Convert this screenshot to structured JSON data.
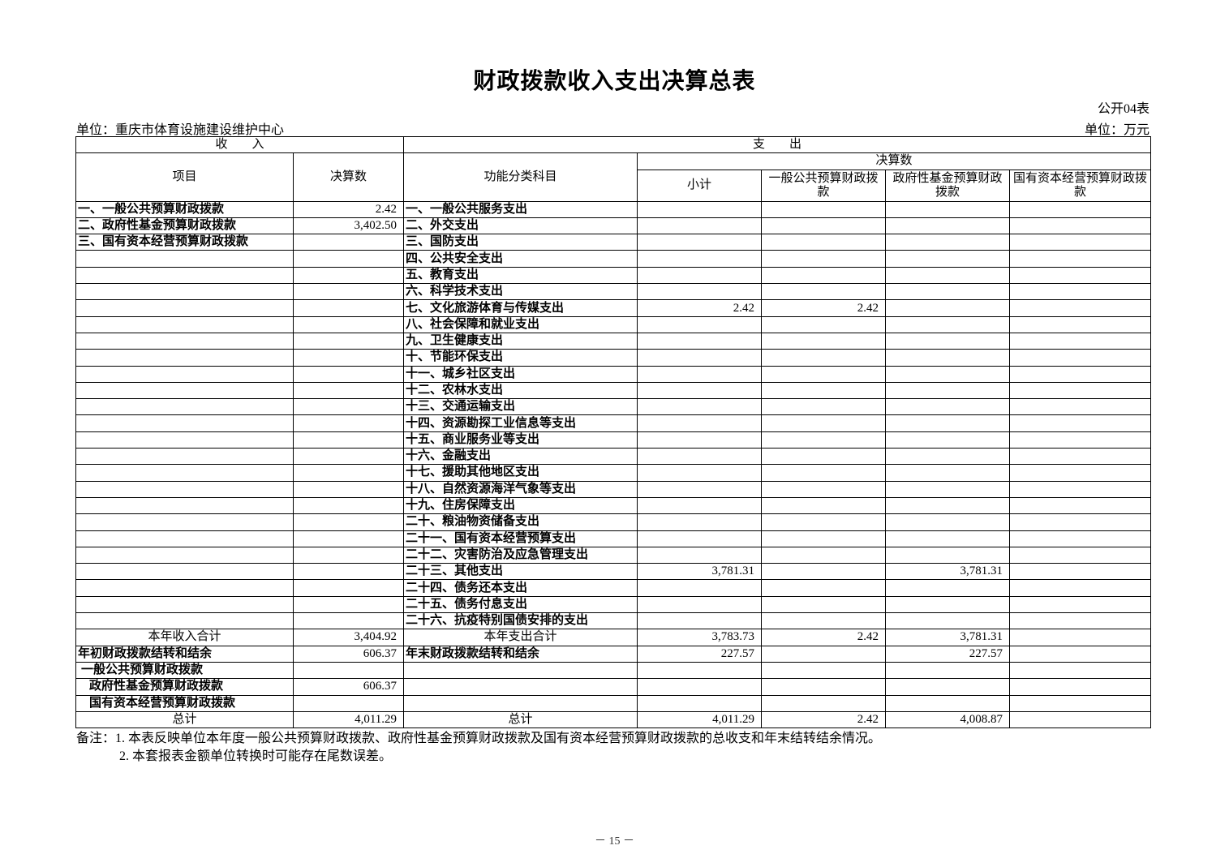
{
  "title": "财政拨款收入支出决算总表",
  "table_code": "公开04表",
  "unit_left": "单位：重庆市体育设施建设维护中心",
  "unit_right": "单位：万元",
  "header": {
    "income": "收　　入",
    "expense": "支　　出",
    "item": "项目",
    "amount": "决算数",
    "function_category": "功能分类科目",
    "final_amount": "决算数",
    "subtotal": "小计",
    "general_budget": "一般公共预算财政拨款",
    "gov_fund": "政府性基金预算财政拨款",
    "state_capital": "国有资本经营预算财政拨款"
  },
  "rows": [
    {
      "in_item": "一、一般公共预算财政拨款",
      "in_value": "2.42",
      "out_item": "一、一般公共服务支出",
      "subtotal": "",
      "general": "",
      "fund": "",
      "state": ""
    },
    {
      "in_item": "二、政府性基金预算财政拨款",
      "in_value": "3,402.50",
      "out_item": "二、外交支出",
      "subtotal": "",
      "general": "",
      "fund": "",
      "state": ""
    },
    {
      "in_item": "三、国有资本经营预算财政拨款",
      "in_value": "",
      "out_item": "三、国防支出",
      "subtotal": "",
      "general": "",
      "fund": "",
      "state": ""
    },
    {
      "in_item": "",
      "in_value": "",
      "out_item": "四、公共安全支出",
      "subtotal": "",
      "general": "",
      "fund": "",
      "state": ""
    },
    {
      "in_item": "",
      "in_value": "",
      "out_item": "五、教育支出",
      "subtotal": "",
      "general": "",
      "fund": "",
      "state": ""
    },
    {
      "in_item": "",
      "in_value": "",
      "out_item": "六、科学技术支出",
      "subtotal": "",
      "general": "",
      "fund": "",
      "state": ""
    },
    {
      "in_item": "",
      "in_value": "",
      "out_item": "七、文化旅游体育与传媒支出",
      "subtotal": "2.42",
      "general": "2.42",
      "fund": "",
      "state": ""
    },
    {
      "in_item": "",
      "in_value": "",
      "out_item": "八、社会保障和就业支出",
      "subtotal": "",
      "general": "",
      "fund": "",
      "state": ""
    },
    {
      "in_item": "",
      "in_value": "",
      "out_item": "九、卫生健康支出",
      "subtotal": "",
      "general": "",
      "fund": "",
      "state": ""
    },
    {
      "in_item": "",
      "in_value": "",
      "out_item": "十、节能环保支出",
      "subtotal": "",
      "general": "",
      "fund": "",
      "state": ""
    },
    {
      "in_item": "",
      "in_value": "",
      "out_item": "十一、城乡社区支出",
      "subtotal": "",
      "general": "",
      "fund": "",
      "state": ""
    },
    {
      "in_item": "",
      "in_value": "",
      "out_item": "十二、农林水支出",
      "subtotal": "",
      "general": "",
      "fund": "",
      "state": ""
    },
    {
      "in_item": "",
      "in_value": "",
      "out_item": "十三、交通运输支出",
      "subtotal": "",
      "general": "",
      "fund": "",
      "state": ""
    },
    {
      "in_item": "",
      "in_value": "",
      "out_item": "十四、资源勘探工业信息等支出",
      "subtotal": "",
      "general": "",
      "fund": "",
      "state": ""
    },
    {
      "in_item": "",
      "in_value": "",
      "out_item": "十五、商业服务业等支出",
      "subtotal": "",
      "general": "",
      "fund": "",
      "state": ""
    },
    {
      "in_item": "",
      "in_value": "",
      "out_item": "十六、金融支出",
      "subtotal": "",
      "general": "",
      "fund": "",
      "state": ""
    },
    {
      "in_item": "",
      "in_value": "",
      "out_item": "十七、援助其他地区支出",
      "subtotal": "",
      "general": "",
      "fund": "",
      "state": ""
    },
    {
      "in_item": "",
      "in_value": "",
      "out_item": "十八、自然资源海洋气象等支出",
      "subtotal": "",
      "general": "",
      "fund": "",
      "state": ""
    },
    {
      "in_item": "",
      "in_value": "",
      "out_item": "十九、住房保障支出",
      "subtotal": "",
      "general": "",
      "fund": "",
      "state": ""
    },
    {
      "in_item": "",
      "in_value": "",
      "out_item": "二十、粮油物资储备支出",
      "subtotal": "",
      "general": "",
      "fund": "",
      "state": ""
    },
    {
      "in_item": "",
      "in_value": "",
      "out_item": "二十一、国有资本经营预算支出",
      "subtotal": "",
      "general": "",
      "fund": "",
      "state": ""
    },
    {
      "in_item": "",
      "in_value": "",
      "out_item": "二十二、灾害防治及应急管理支出",
      "subtotal": "",
      "general": "",
      "fund": "",
      "state": ""
    },
    {
      "in_item": "",
      "in_value": "",
      "out_item": "二十三、其他支出",
      "subtotal": "3,781.31",
      "general": "",
      "fund": "3,781.31",
      "state": ""
    },
    {
      "in_item": "",
      "in_value": "",
      "out_item": "二十四、债务还本支出",
      "subtotal": "",
      "general": "",
      "fund": "",
      "state": ""
    },
    {
      "in_item": "",
      "in_value": "",
      "out_item": "二十五、债务付息支出",
      "subtotal": "",
      "general": "",
      "fund": "",
      "state": ""
    },
    {
      "in_item": "",
      "in_value": "",
      "out_item": "二十六、抗疫特别国债安排的支出",
      "subtotal": "",
      "general": "",
      "fund": "",
      "state": ""
    },
    {
      "type": "total",
      "in_item": "本年收入合计",
      "in_value": "3,404.92",
      "out_item": "本年支出合计",
      "subtotal": "3,783.73",
      "general": "2.42",
      "fund": "3,781.31",
      "state": ""
    },
    {
      "type": "carry",
      "in_item": "年初财政拨款结转和结余",
      "in_value": "606.37",
      "out_item": "年末财政拨款结转和结余",
      "subtotal": "227.57",
      "general": "",
      "fund": "227.57",
      "state": ""
    },
    {
      "type": "sub1",
      "in_item": "一般公共预算财政拨款",
      "in_value": "",
      "out_item": "",
      "subtotal": "",
      "general": "",
      "fund": "",
      "state": ""
    },
    {
      "type": "sub2",
      "in_item": "政府性基金预算财政拨款",
      "in_value": "606.37",
      "out_item": "",
      "subtotal": "",
      "general": "",
      "fund": "",
      "state": ""
    },
    {
      "type": "sub2",
      "in_item": "国有资本经营预算财政拨款",
      "in_value": "",
      "out_item": "",
      "subtotal": "",
      "general": "",
      "fund": "",
      "state": ""
    },
    {
      "type": "total",
      "in_item": "总计",
      "in_value": "4,011.29",
      "out_item": "总计",
      "subtotal": "4,011.29",
      "general": "2.42",
      "fund": "4,008.87",
      "state": ""
    }
  ],
  "notes": [
    "备注：1. 本表反映单位本年度一般公共预算财政拨款、政府性基金预算财政拨款及国有资本经营预算财政拨款的总收支和年末结转结余情况。",
    "2. 本套报表金额单位转换时可能存在尾数误差。"
  ],
  "page_number": "－ 15 －"
}
